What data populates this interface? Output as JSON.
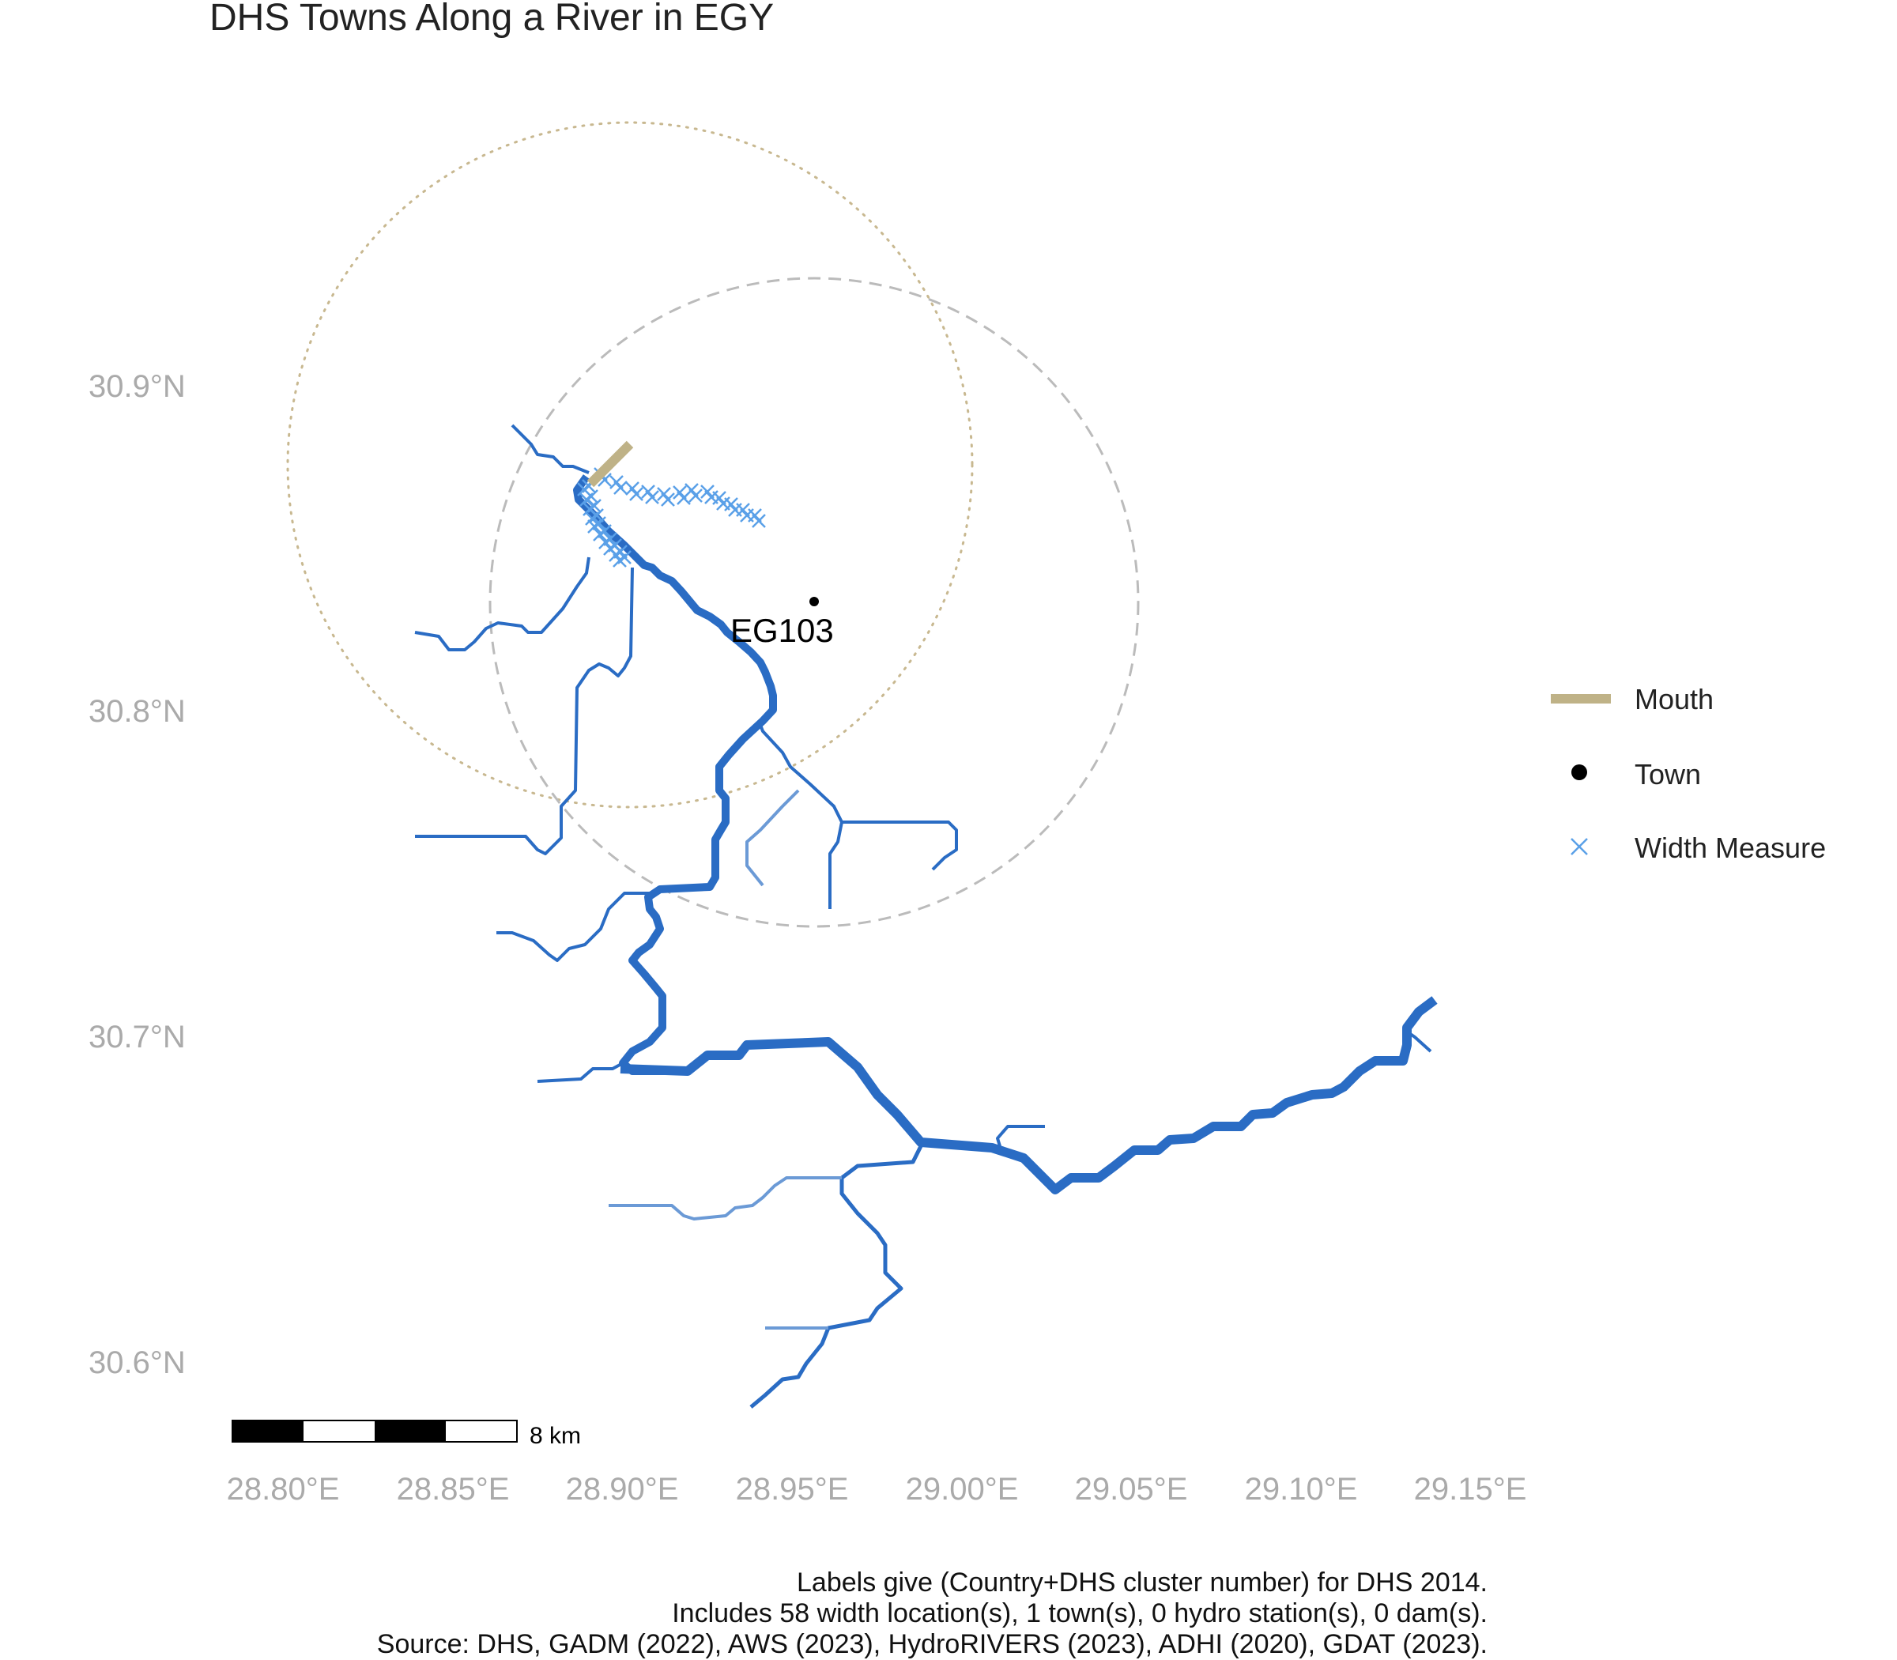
{
  "title": "DHS Towns Along a River in EGY",
  "axes": {
    "x_ticks": [
      "28.80°E",
      "28.85°E",
      "28.90°E",
      "28.95°E",
      "29.00°E",
      "29.05°E",
      "29.10°E",
      "29.15°E"
    ],
    "y_ticks": [
      "30.9°N",
      "30.8°N",
      "30.7°N",
      "30.6°N"
    ]
  },
  "legend": {
    "mouth": "Mouth",
    "town": "Town",
    "width_measure": "Width Measure"
  },
  "colors": {
    "river": "#2a6cc4",
    "river_minor": "#6b9ad6",
    "width_measure": "#5aa0e8",
    "mouth": "#bfb287",
    "circle_dotted": "#c8b890",
    "circle_dashed": "#bbbbbb",
    "town": "#000000"
  },
  "towns": [
    {
      "label": "EG103",
      "lon": 28.956,
      "lat": 30.833
    }
  ],
  "scale_bar": {
    "label": "8 km"
  },
  "caption": {
    "line1": "Labels give (Country+DHS cluster number) for DHS 2014.",
    "line2": "Includes 58 width location(s), 1 town(s), 0 hydro station(s), 0 dam(s).",
    "line3": "Source: DHS, GADM (2022), AWS (2023), HydroRIVERS (2023), ADHI (2020), GDAT (2023)."
  }
}
